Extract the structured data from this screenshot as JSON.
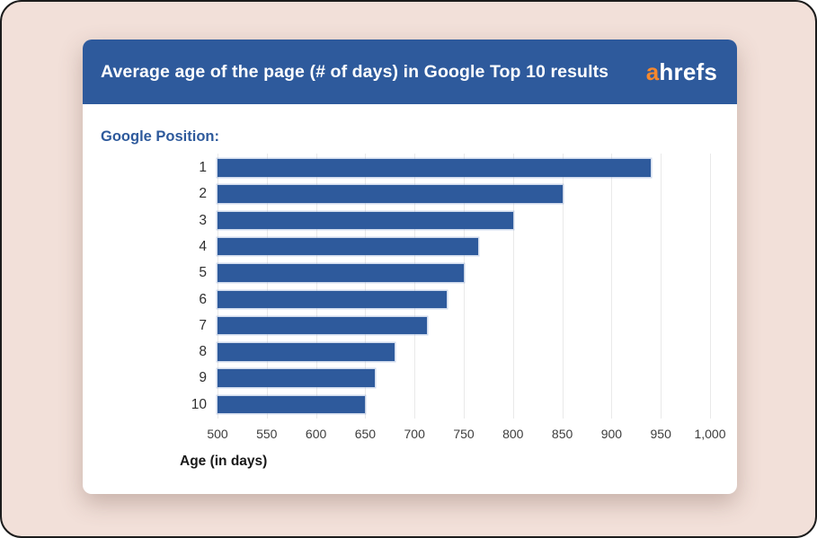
{
  "frame": {
    "background": "#F2E0D9"
  },
  "card": {
    "header": {
      "background": "#2E5A9C",
      "title": "Average age of the page (# of days) in Google Top 10 results",
      "logo": {
        "prefix": "a",
        "rest": "hrefs",
        "prefix_color": "#F6882D"
      }
    }
  },
  "chart_data": {
    "type": "bar",
    "orientation": "horizontal",
    "title": "Average age of the page (# of days) in Google Top 10 results",
    "ylabel": "Google Position:",
    "xlabel": "Age (in days)",
    "categories": [
      "1",
      "2",
      "3",
      "4",
      "5",
      "6",
      "7",
      "8",
      "9",
      "10"
    ],
    "values": [
      940,
      850,
      800,
      765,
      750,
      733,
      713,
      680,
      660,
      650
    ],
    "xlim": [
      500,
      1000
    ],
    "xticks": [
      500,
      550,
      600,
      650,
      700,
      750,
      800,
      850,
      900,
      950,
      1000
    ],
    "xtick_labels": [
      "500",
      "550",
      "600",
      "650",
      "700",
      "750",
      "800",
      "850",
      "900",
      "950",
      "1,000"
    ],
    "bar_color": "#2E5A9C",
    "gridline_color": "#E9E9E9",
    "grid": true,
    "legend_position": "none"
  }
}
